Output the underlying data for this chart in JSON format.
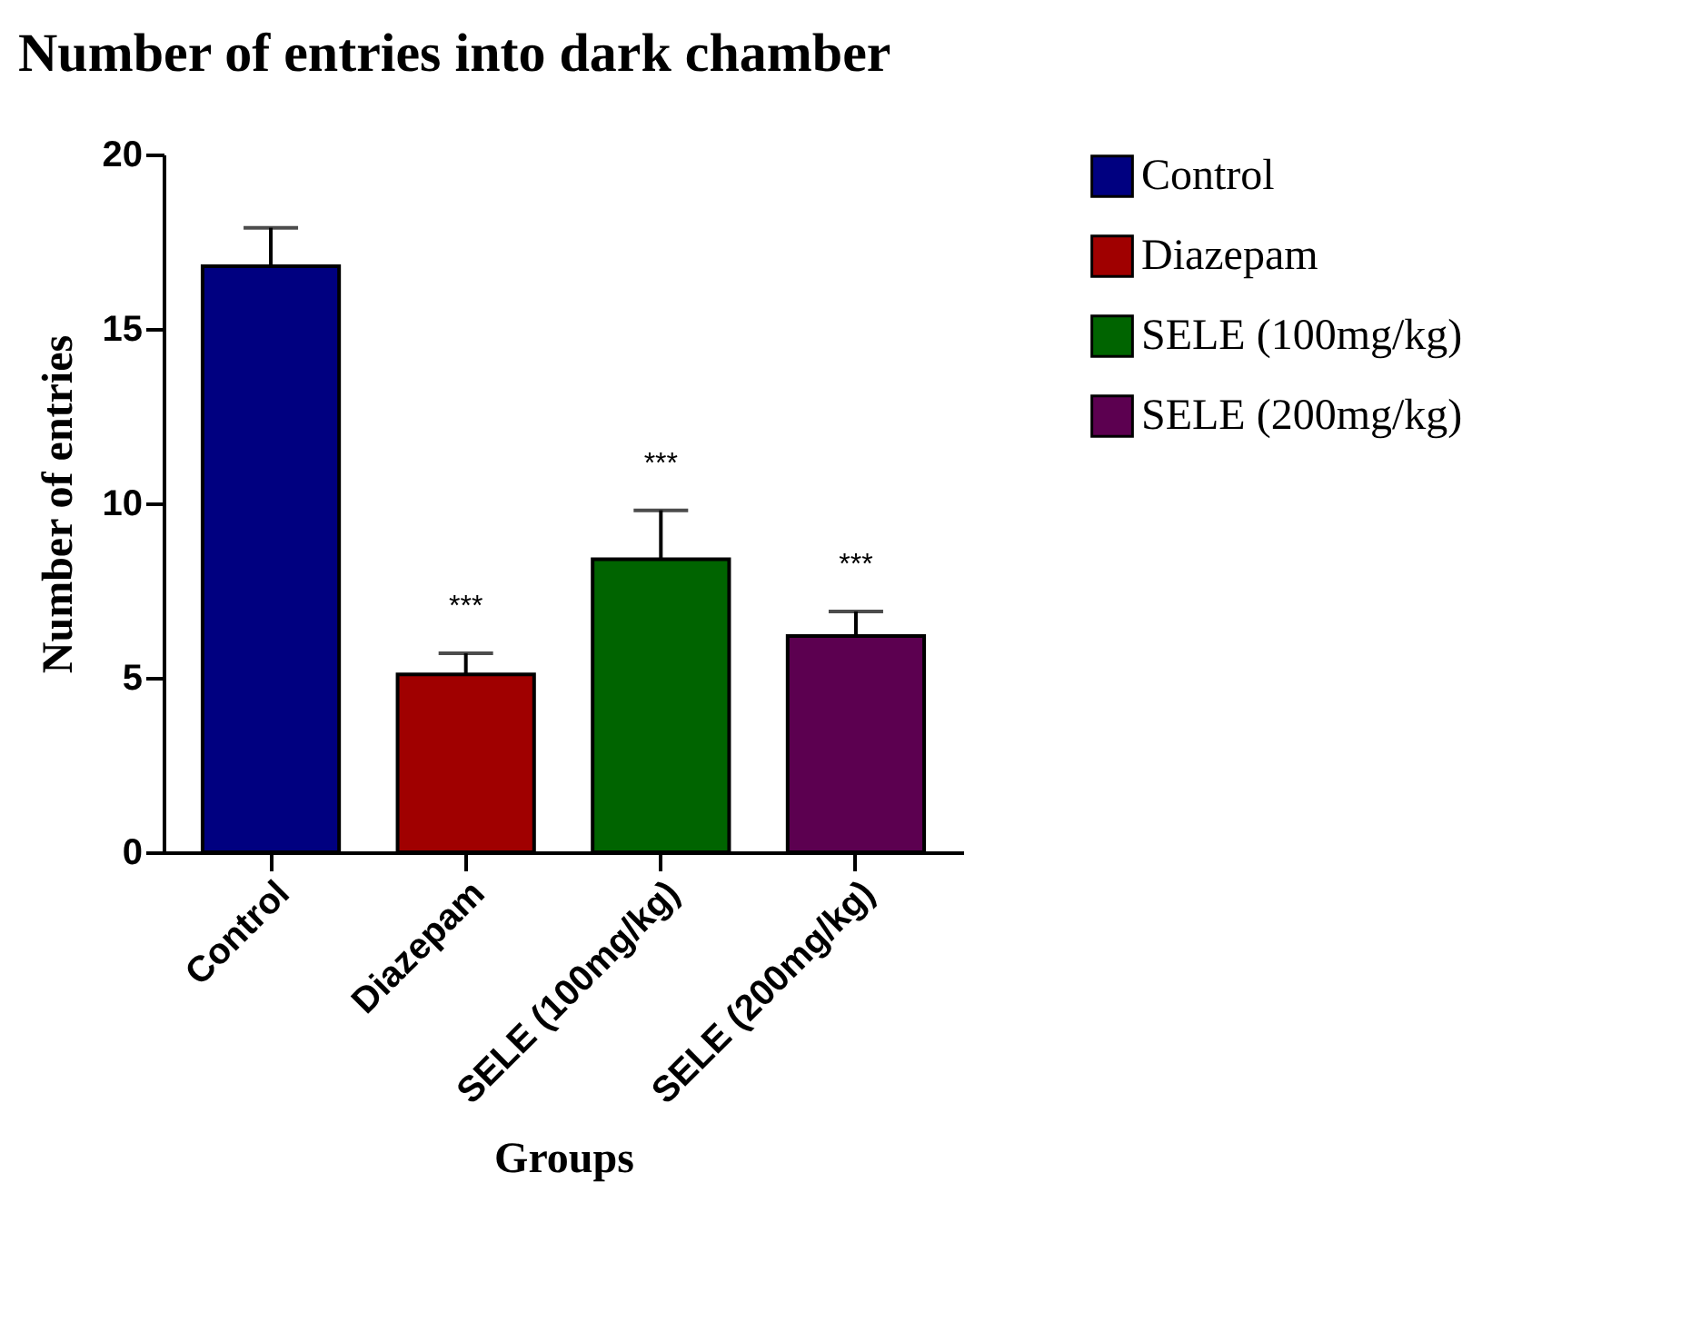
{
  "chart_data": {
    "type": "bar",
    "title": "Number of entries into dark chamber",
    "xlabel": "Groups",
    "ylabel": "Number of entries",
    "categories": [
      "Control",
      "Diazepam",
      "SELE (100mg/kg)",
      "SELE (200mg/kg)"
    ],
    "series": [
      {
        "name": "Control",
        "color": "#000080",
        "values": [
          16.8,
          null,
          null,
          null
        ],
        "errors": [
          1.1,
          null,
          null,
          null
        ]
      },
      {
        "name": "Diazepam",
        "color": "#a00000",
        "values": [
          null,
          5.1,
          null,
          null
        ],
        "errors": [
          null,
          0.6,
          null,
          null
        ]
      },
      {
        "name": "SELE (100mg/kg)",
        "color": "#006400",
        "values": [
          null,
          null,
          8.4,
          null
        ],
        "errors": [
          null,
          null,
          1.4,
          null
        ]
      },
      {
        "name": "SELE (200mg/kg)",
        "color": "#5c0050",
        "values": [
          null,
          null,
          null,
          6.2
        ],
        "errors": [
          null,
          null,
          null,
          0.7
        ]
      }
    ],
    "ylim": [
      0,
      20
    ],
    "yticks": [
      0,
      5,
      10,
      15,
      20
    ],
    "grid": false,
    "legend": "top right",
    "annotations": [
      {
        "text": "***",
        "x": "Diazepam",
        "y": 5.7
      },
      {
        "text": "***",
        "x": "SELE (100mg/kg)",
        "y": 9.8
      },
      {
        "text": "***",
        "x": "SELE (200mg/kg)",
        "y": 6.9
      }
    ]
  }
}
